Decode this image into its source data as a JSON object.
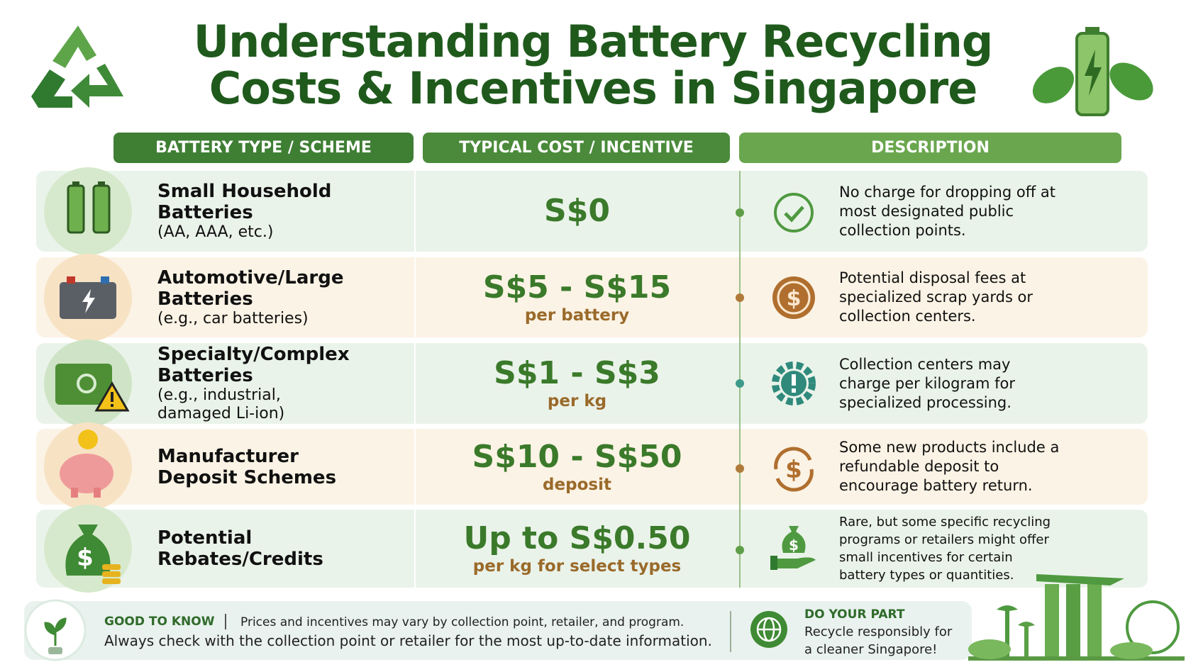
{
  "header": {
    "title_line1": "Understanding Battery Recycling",
    "title_line2": "Costs & Incentives in Singapore"
  },
  "table": {
    "columns": [
      "BATTERY TYPE / SCHEME",
      "TYPICAL COST / INCENTIVE",
      "DESCRIPTION"
    ],
    "rows": [
      {
        "name": "Small Household Batteries",
        "detail": "(AA, AAA, etc.)",
        "cost": "S$0",
        "description": "No charge for dropping off at most designated public collection points."
      },
      {
        "name": "Automotive/Large Batteries",
        "detail": "(e.g., car batteries)",
        "cost": "S$5 - S$15",
        "unit": "per battery",
        "description": "Potential disposal fees at specialized scrap yards or collection centers."
      },
      {
        "name": "Specialty/Complex Batteries",
        "detail": "(e.g., industrial, damaged Li-ion)",
        "cost": "S$1 - S$3",
        "unit": "per kg",
        "description": "Collection centers may charge per kilogram for specialized processing."
      },
      {
        "name": "Manufacturer Deposit Schemes",
        "cost": "S$10 - S$50",
        "unit": "deposit",
        "description": "Some new products include a refundable deposit to encourage battery return."
      },
      {
        "name": "Potential Rebates/Credits",
        "cost": "Up to S$0.50",
        "unit": "per kg for select types",
        "description": "Rare, but some specific recycling programs or retailers might offer small incentives for certain battery types or quantities."
      }
    ]
  },
  "footer": {
    "note_label": "GOOD TO KNOW",
    "note_line1": "Prices and incentives may vary by collection point, retailer, and program.",
    "note_line2": "Always check with the collection point or retailer for the most up-to-date information.",
    "cta_label": "DO YOUR PART",
    "cta_text": "Recycle responsibly for a cleaner Singapore!"
  }
}
